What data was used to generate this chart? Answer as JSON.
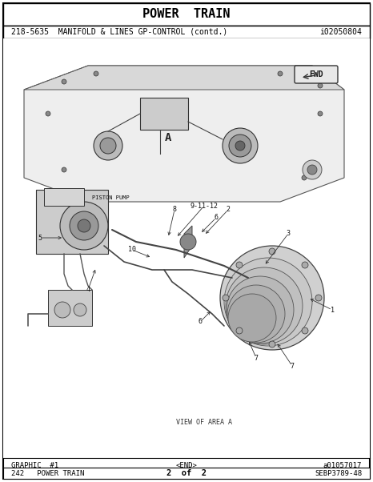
{
  "title": "POWER  TRAIN",
  "subtitle": "218-5635  MANIFOLD & LINES GP-CONTROL (contd.)",
  "doc_number": "i02050804",
  "footer_left": "GRAPHIC  #1",
  "footer_center": "<END>",
  "footer_right": "a01057017",
  "bottom_left": "242   POWER TRAIN",
  "bottom_center": "2  of  2",
  "bottom_right": "SEBP3789-48",
  "view_label": "VIEW OF AREA A",
  "bg_color": "#ffffff",
  "border_color": "#000000",
  "text_color": "#000000",
  "title_fontsize": 11,
  "subtitle_fontsize": 7,
  "footer_fontsize": 6.5,
  "diagram_bg": "#f5f5f5"
}
